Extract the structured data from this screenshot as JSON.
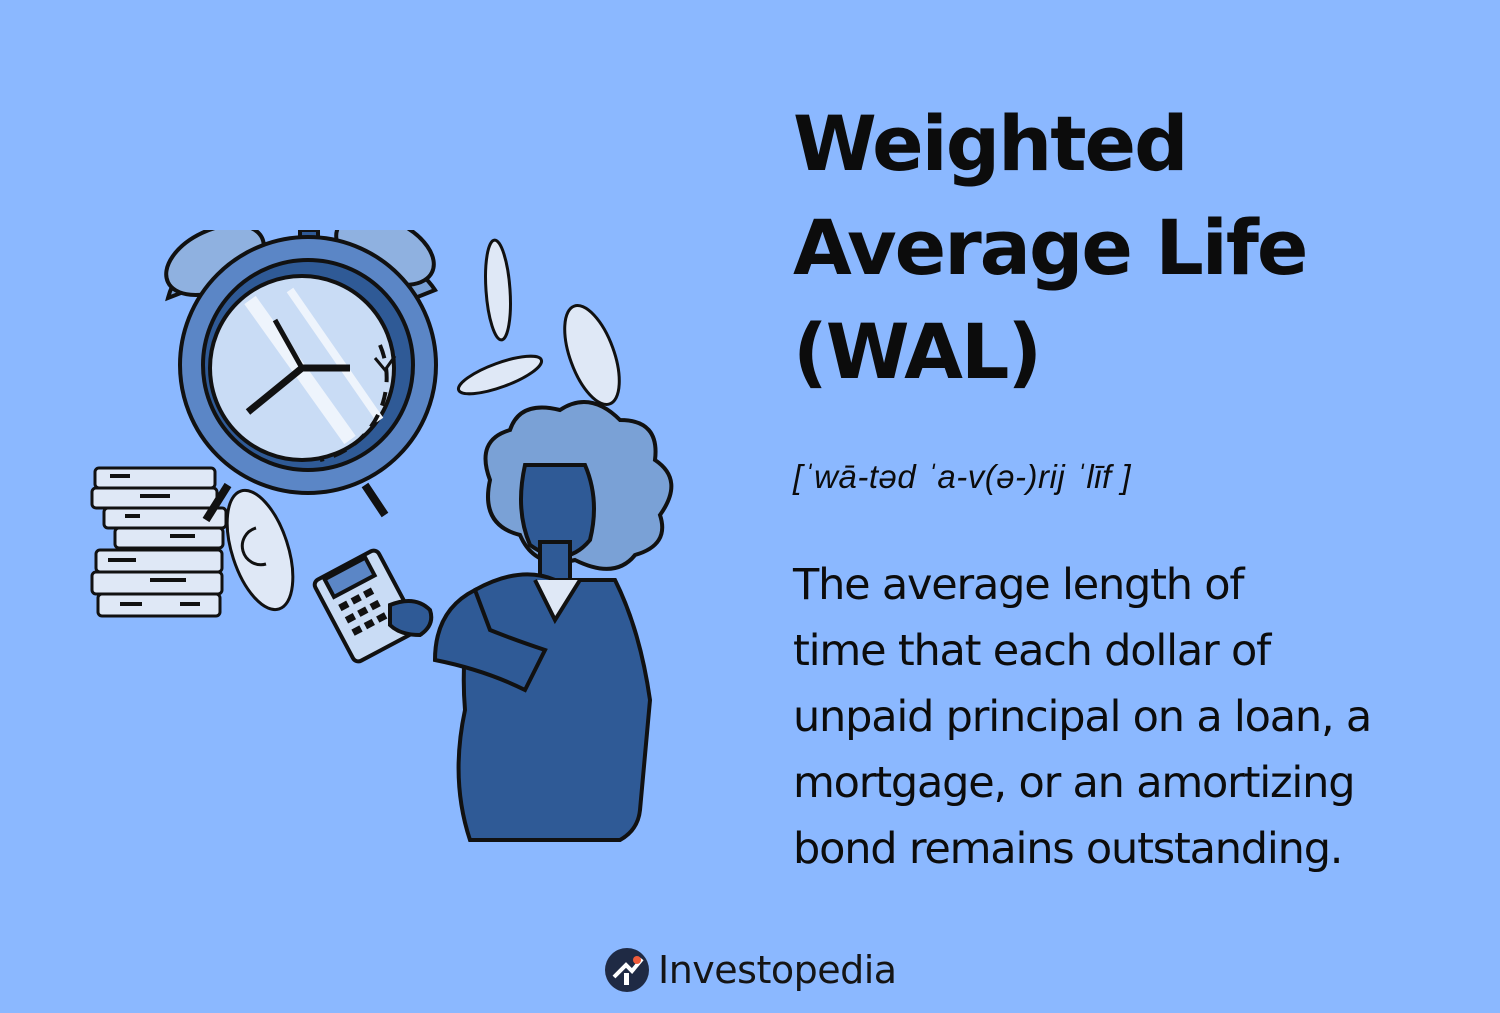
{
  "title_lines": [
    "Weighted",
    "Average Life",
    "(WAL)"
  ],
  "pronunciation": "[ˈwā-təd ˈa-v(ə-)rij ˈlīf ]",
  "definition_lines": [
    "The average length of",
    "time that each dollar of",
    "unpaid principal on a loan, a",
    "mortgage, or an amortizing",
    "bond remains outstanding."
  ],
  "brand": {
    "name": "Investopedia",
    "logo_icon": "investopedia-logo-icon"
  },
  "illustration": {
    "elements": [
      "alarm-clock-icon",
      "coin-stack-icon",
      "falling-coin-icon",
      "person-with-calculator-icon"
    ]
  },
  "colors": {
    "background": "#8bb8ff",
    "illustration_dark_blue": "#2f5a96",
    "illustration_mid_blue": "#5b86c6",
    "illustration_light_blue": "#c9dcf5",
    "logo_dark": "#1f2a44",
    "logo_accent": "#ef5b3a"
  }
}
